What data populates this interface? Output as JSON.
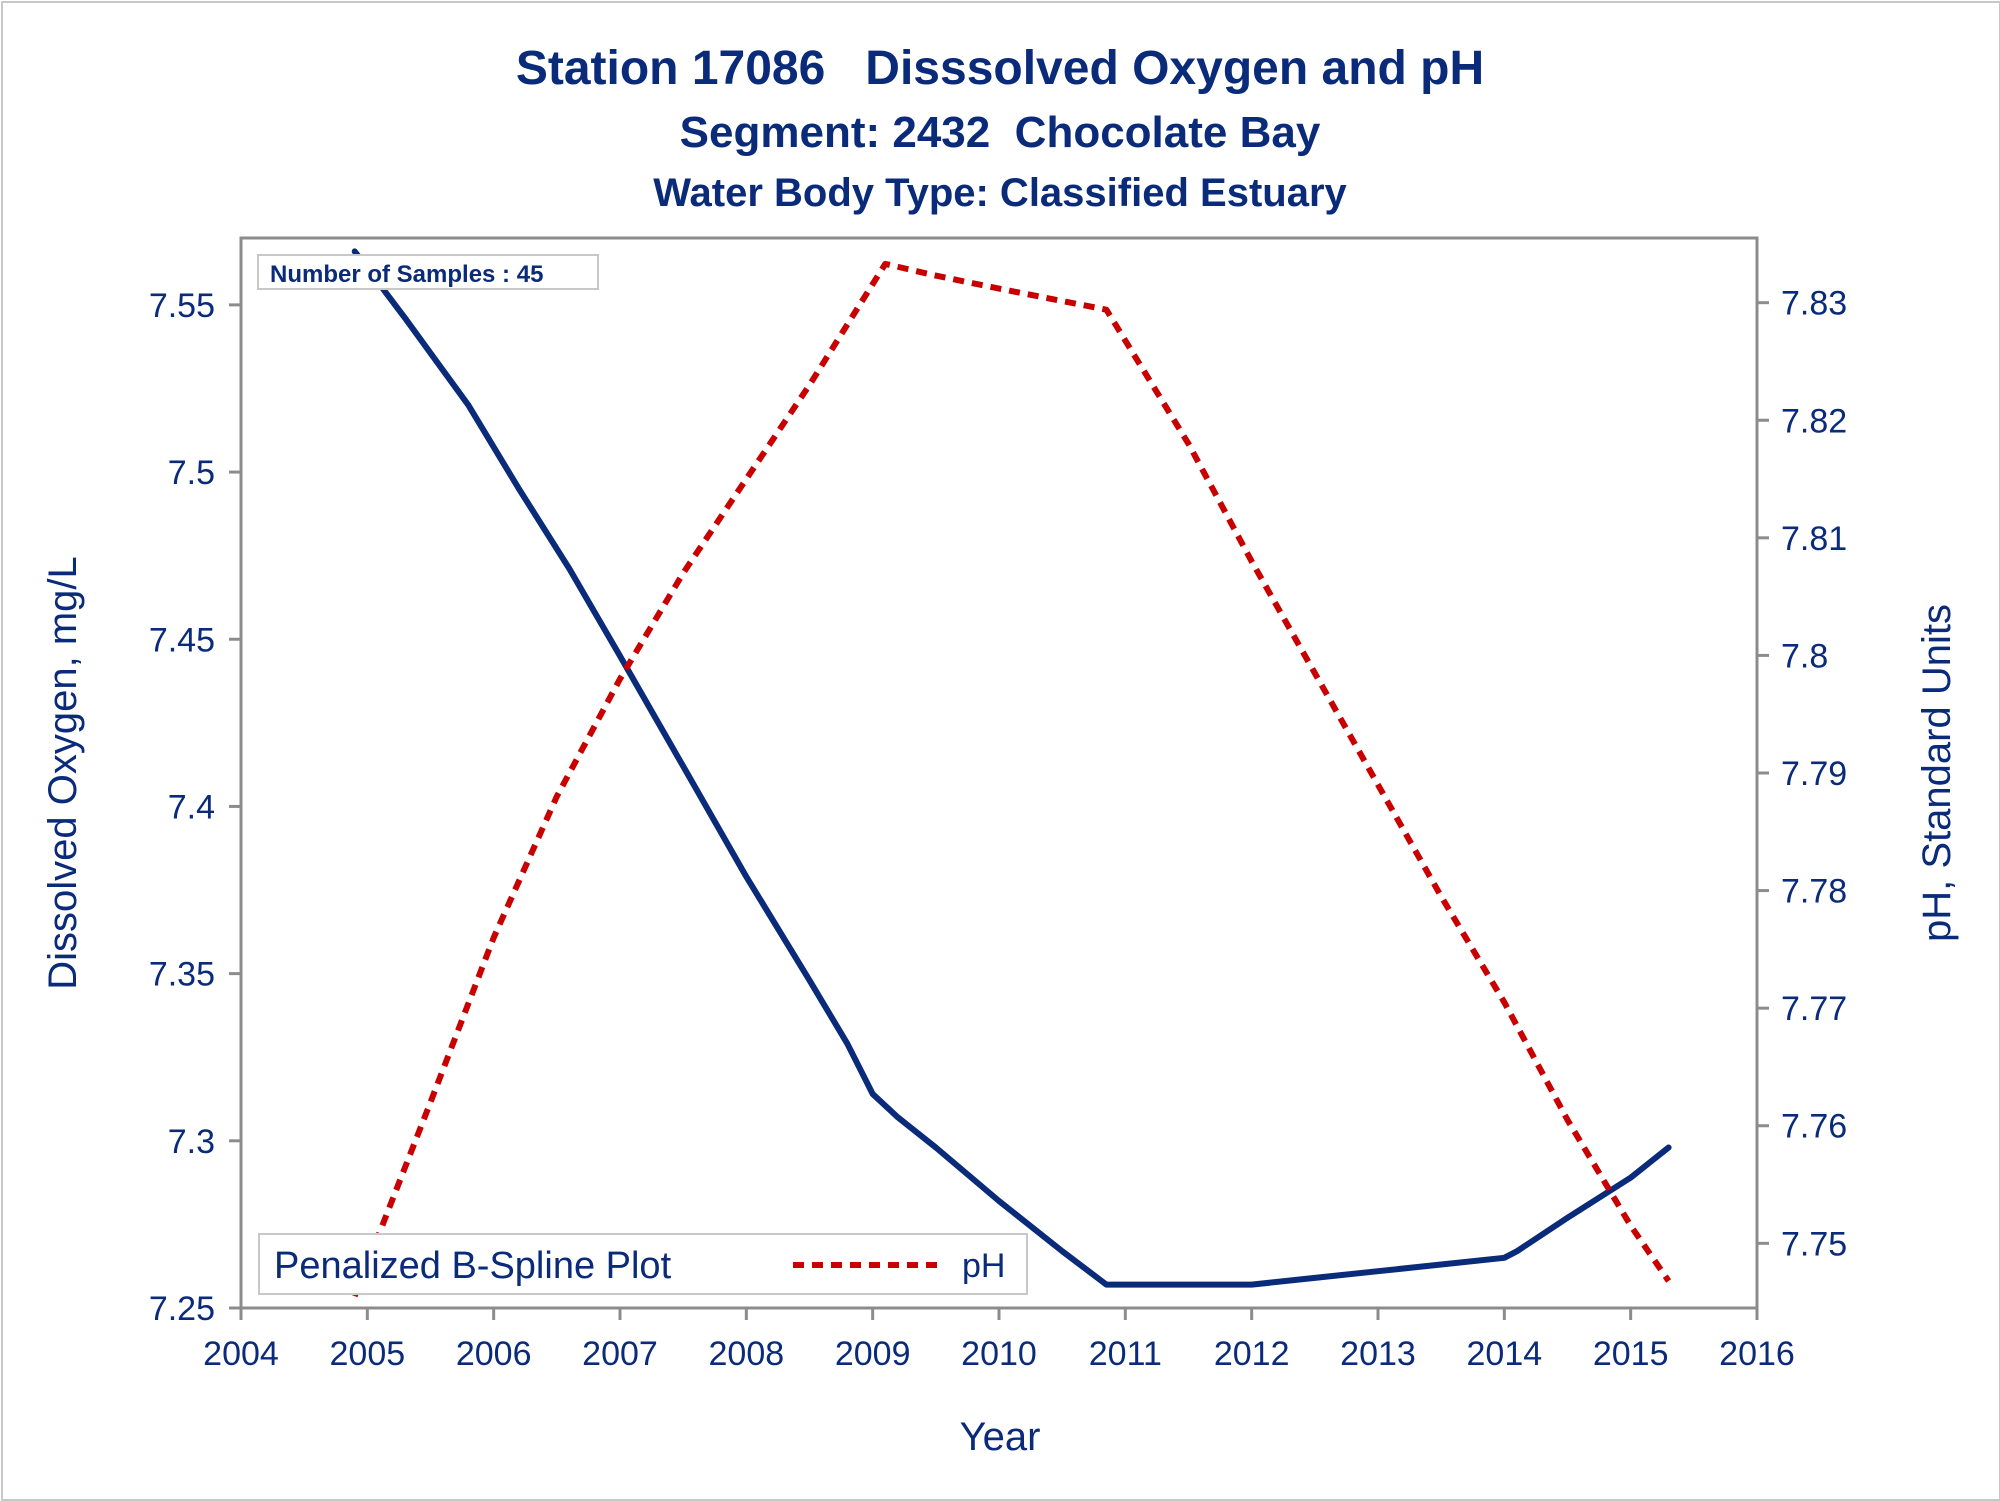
{
  "chart_data": {
    "type": "line",
    "title": "Station 17086   Disssolved Oxygen and pH",
    "subtitle": "Segment: 2432  Chocolate Bay",
    "subtitle2": "Water Body Type: Classified Estuary",
    "xlabel": "Year",
    "ylabel": "Dissolved Oxygen, mg/L",
    "y2label": "pH, Standard Units",
    "xlim": [
      2004,
      2016
    ],
    "ylim": [
      7.25,
      7.57
    ],
    "y2lim": [
      7.7445,
      7.8355
    ],
    "x_ticks": [
      "2004",
      "2005",
      "2006",
      "2007",
      "2008",
      "2009",
      "2010",
      "2011",
      "2012",
      "2013",
      "2014",
      "2015",
      "2016"
    ],
    "y_ticks": [
      "7.25",
      "7.3",
      "7.35",
      "7.4",
      "7.45",
      "7.5",
      "7.55"
    ],
    "y2_ticks": [
      "7.75",
      "7.76",
      "7.77",
      "7.78",
      "7.79",
      "7.8",
      "7.81",
      "7.82",
      "7.83"
    ],
    "annotation": "Number of Samples : 45",
    "legend": {
      "position": "bottom-left-inside",
      "label1": "Penalized B-Spline Plot",
      "label2": "pH"
    },
    "grid": false,
    "series": [
      {
        "axis": "left",
        "color": "#0a2a7a",
        "style": "solid",
        "x": [
          2004.9,
          2005.3,
          2005.8,
          2006.2,
          2006.6,
          2007.0,
          2007.5,
          2008.0,
          2008.5,
          2008.8,
          2009.0,
          2009.2,
          2009.5,
          2010.0,
          2010.5,
          2010.85,
          2011.0,
          2011.5,
          2012.0,
          2012.5,
          2013.0,
          2013.5,
          2014.0,
          2014.1,
          2014.5,
          2015.0,
          2015.3
        ],
        "values": [
          7.566,
          7.546,
          7.52,
          7.495,
          7.471,
          7.445,
          7.412,
          7.379,
          7.348,
          7.329,
          7.314,
          7.307,
          7.298,
          7.282,
          7.267,
          7.257,
          7.257,
          7.257,
          7.257,
          7.259,
          7.261,
          7.263,
          7.265,
          7.267,
          7.277,
          7.289,
          7.298
        ]
      },
      {
        "axis": "right",
        "name": "pH",
        "color": "#c80000",
        "style": "dashed",
        "x": [
          2004.9,
          2005.5,
          2006.0,
          2006.5,
          2007.0,
          2007.5,
          2008.0,
          2008.5,
          2009.1,
          2009.5,
          2010.0,
          2010.85,
          2011.5,
          2012.0,
          2012.5,
          2013.0,
          2013.5,
          2014.0,
          2014.5,
          2015.0,
          2015.3
        ],
        "values": [
          7.7455,
          7.762,
          7.776,
          7.788,
          7.798,
          7.807,
          7.815,
          7.823,
          7.8333,
          7.8323,
          7.8312,
          7.8294,
          7.818,
          7.808,
          7.7985,
          7.789,
          7.7795,
          7.7705,
          7.7605,
          7.7515,
          7.7468
        ]
      }
    ]
  }
}
